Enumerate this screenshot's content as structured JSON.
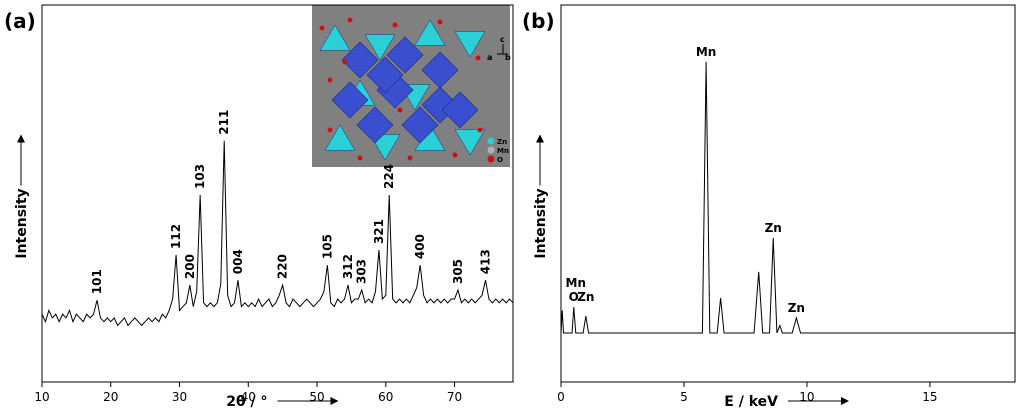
{
  "chart_data": [
    {
      "type": "line",
      "panel_label": "(a)",
      "x_label": "2θ / °",
      "y_label": "Intensity",
      "xlim": [
        10,
        78.5
      ],
      "xticks": [
        10,
        20,
        30,
        40,
        50,
        60,
        70
      ],
      "ylim": [
        0,
        100
      ],
      "color": "#000000",
      "x": [
        10,
        10.5,
        11,
        11.5,
        12,
        12.5,
        13,
        13.5,
        14,
        14.5,
        15,
        15.5,
        16,
        16.5,
        17,
        17.5,
        18,
        18.5,
        19,
        19.5,
        20,
        20.5,
        21,
        21.5,
        22,
        22.5,
        23,
        23.5,
        24,
        24.5,
        25,
        25.5,
        26,
        26.5,
        27,
        27.5,
        28,
        28.5,
        29,
        29.5,
        30,
        30.5,
        31,
        31.5,
        32,
        32.5,
        33,
        33.5,
        34,
        34.5,
        35,
        35.5,
        36,
        36.5,
        37,
        37.5,
        38,
        38.5,
        39,
        39.5,
        40,
        40.5,
        41,
        41.5,
        42,
        42.5,
        43,
        43.5,
        44,
        44.5,
        45,
        45.5,
        46,
        46.5,
        47,
        47.5,
        48,
        48.5,
        49,
        49.5,
        50,
        50.5,
        51,
        51.5,
        52,
        52.5,
        53,
        53.5,
        54,
        54.5,
        55,
        55.5,
        56,
        56.5,
        57,
        57.5,
        58,
        58.5,
        59,
        59.5,
        60,
        60.5,
        61,
        61.5,
        62,
        62.5,
        63,
        63.5,
        64,
        64.5,
        65,
        65.5,
        66,
        66.5,
        67,
        67.5,
        68,
        68.5,
        69,
        69.5,
        70,
        70.5,
        71,
        71.5,
        72,
        72.5,
        73,
        73.5,
        74,
        74.5,
        75,
        75.5,
        76,
        76.5,
        77,
        77.5,
        78,
        78.5
      ],
      "values": [
        18,
        16,
        19,
        17,
        18,
        16,
        18,
        17,
        19,
        16,
        18,
        17,
        16,
        18,
        17,
        18,
        21.7,
        17,
        16,
        17,
        16,
        17,
        15,
        16,
        17,
        15,
        16,
        17,
        16,
        15,
        16,
        17,
        16,
        17,
        16,
        18,
        17,
        19,
        22,
        33.7,
        19,
        20,
        21,
        25.7,
        20,
        24,
        49.6,
        21,
        20,
        21,
        20,
        21,
        26,
        64,
        23,
        20,
        21,
        27,
        20,
        21,
        20,
        21,
        20,
        22,
        20,
        21,
        22,
        20,
        21,
        23,
        25.7,
        21,
        20,
        22,
        21,
        20,
        21,
        22,
        21,
        20,
        21,
        22,
        24,
        31,
        21,
        20,
        22,
        21,
        22,
        25.7,
        21,
        22,
        22,
        24.4,
        21,
        22,
        21,
        24,
        35,
        22,
        23,
        49.6,
        22,
        21,
        22,
        21,
        22,
        21,
        23,
        25,
        31,
        23,
        21,
        22,
        21,
        22,
        21,
        22,
        21,
        22,
        22,
        24.4,
        21,
        22,
        21,
        22,
        21,
        22,
        23,
        27,
        22,
        21,
        22,
        21,
        22,
        21,
        22,
        21
      ],
      "annotations": [
        {
          "text": "101",
          "x": 18
        },
        {
          "text": "112",
          "x": 29.5
        },
        {
          "text": "200",
          "x": 31.5
        },
        {
          "text": "103",
          "x": 33
        },
        {
          "text": "211",
          "x": 36.5
        },
        {
          "text": "004",
          "x": 38.5
        },
        {
          "text": "220",
          "x": 45
        },
        {
          "text": "105",
          "x": 51.5
        },
        {
          "text": "312",
          "x": 54.5
        },
        {
          "text": "303",
          "x": 56.5
        },
        {
          "text": "321",
          "x": 59
        },
        {
          "text": "224",
          "x": 60.5
        },
        {
          "text": "400",
          "x": 65
        },
        {
          "text": "305",
          "x": 70.5
        },
        {
          "text": "413",
          "x": 74.5
        }
      ],
      "inset": {
        "legend": [
          "Zn",
          "Mn",
          "O"
        ],
        "axes": [
          "c",
          "a",
          "b"
        ]
      }
    },
    {
      "type": "line",
      "panel_label": "(b)",
      "x_label": "E / keV",
      "y_label": "Intensity",
      "xlim": [
        0,
        18.46
      ],
      "xticks": [
        0,
        5,
        10,
        15
      ],
      "ylim": [
        0,
        100
      ],
      "color": "#000000",
      "x": [
        0,
        0.05,
        0.1,
        0.3,
        0.45,
        0.52,
        0.6,
        0.9,
        1.01,
        1.12,
        1.5,
        3,
        5.5,
        5.75,
        5.9,
        6.05,
        6.35,
        6.49,
        6.63,
        7.85,
        8.04,
        8.2,
        8.48,
        8.63,
        8.78,
        8.9,
        9.0,
        9.4,
        9.57,
        9.74,
        12,
        18.46
      ],
      "values": [
        13,
        19,
        13,
        13,
        13,
        19.9,
        13,
        13,
        17.5,
        13,
        13,
        13,
        13,
        13,
        84.9,
        13,
        13,
        22.3,
        13,
        13,
        29.2,
        13,
        13,
        38.2,
        13,
        15,
        13,
        13,
        17,
        13,
        13,
        13
      ],
      "annotations": [
        {
          "text": "O",
          "x": 0.52
        },
        {
          "text": "Mn",
          "x": 0.6
        },
        {
          "text": "Zn",
          "x": 1.01
        },
        {
          "text": "Mn",
          "x": 5.9
        },
        {
          "text": "Zn",
          "x": 8.63
        },
        {
          "text": "Zn",
          "x": 9.57
        }
      ]
    }
  ]
}
